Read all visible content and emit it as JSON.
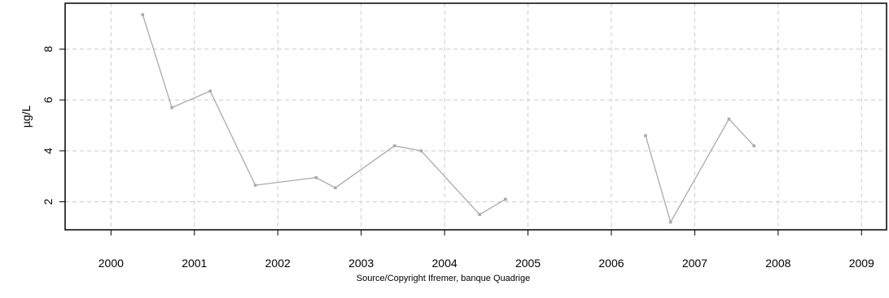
{
  "chart_data": {
    "type": "line",
    "title": "",
    "xlabel": "",
    "ylabel": "µg/L",
    "source": "Source/Copyright Ifremer, banque Quadrige",
    "xlim": [
      1999.45,
      2009.3
    ],
    "ylim": [
      0.9,
      9.8
    ],
    "x_ticks": [
      2000,
      2001,
      2002,
      2003,
      2004,
      2005,
      2006,
      2007,
      2008,
      2009
    ],
    "x_tick_labels": [
      "2000",
      "2001",
      "2002",
      "2003",
      "2004",
      "2005",
      "2006",
      "2007",
      "2008",
      "2009"
    ],
    "y_ticks": [
      2,
      4,
      6,
      8
    ],
    "y_tick_labels": [
      "2",
      "4",
      "6",
      "8"
    ],
    "grid": true,
    "line_color": "#aaaaaa",
    "segments": [
      {
        "x": [
          2000.38,
          2000.73,
          2001.19,
          2001.73,
          2002.46,
          2002.69,
          2003.4,
          2003.72,
          2004.42,
          2004.73
        ],
        "y": [
          9.35,
          5.7,
          6.35,
          2.65,
          2.95,
          2.55,
          4.2,
          4.0,
          1.5,
          2.1
        ]
      },
      {
        "x": [
          2006.41,
          2006.71,
          2007.41,
          2007.71
        ],
        "y": [
          4.6,
          1.2,
          5.25,
          4.2
        ]
      }
    ]
  }
}
